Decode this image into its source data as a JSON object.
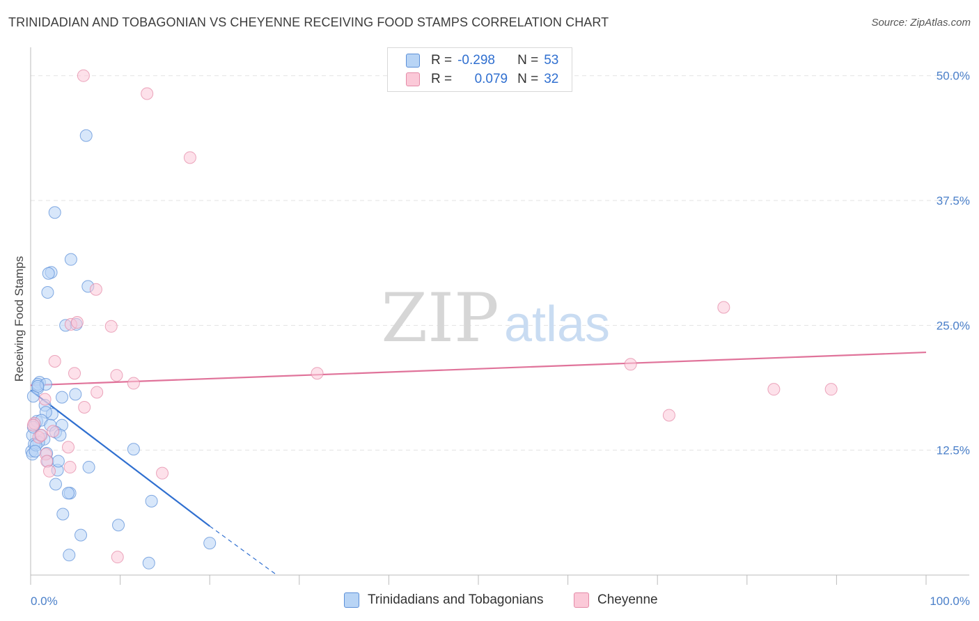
{
  "title": "TRINIDADIAN AND TOBAGONIAN VS CHEYENNE RECEIVING FOOD STAMPS CORRELATION CHART",
  "source": "Source: ZipAtlas.com",
  "watermark": {
    "zip": "ZIP",
    "atlas": "atlas"
  },
  "legend": {
    "r_label": "R =",
    "n_label": "N =",
    "series1": {
      "r": "-0.298",
      "n": "53"
    },
    "series2": {
      "r": "0.079",
      "n": "32"
    }
  },
  "bottom_legend": {
    "series1": "Trinidadians and Tobagonians",
    "series2": "Cheyenne"
  },
  "chart_data": {
    "type": "scatter",
    "title": "TRINIDADIAN AND TOBAGONIAN VS CHEYENNE RECEIVING FOOD STAMPS CORRELATION CHART",
    "xlabel": "",
    "ylabel": "Receiving Food Stamps",
    "xlim": [
      0,
      100
    ],
    "ylim": [
      0,
      52
    ],
    "x_tick_labels": [
      "0.0%",
      "100.0%"
    ],
    "y_ticks": [
      12.5,
      25.0,
      37.5,
      50.0
    ],
    "y_tick_labels": [
      "12.5%",
      "25.0%",
      "37.5%",
      "50.0%"
    ],
    "colors": {
      "series1": "#5b8fd8",
      "series1_fill": "#b8d4f5",
      "series1_line": "#2f6fd0",
      "series2": "#e48aa7",
      "series2_fill": "#fbc9d8",
      "series2_line": "#e0739a",
      "tick_text": "#4a7fc9",
      "grid": "#e3e3e3"
    },
    "series": [
      {
        "name": "Trinidadians and Tobagonians",
        "x": [
          6.2,
          2.7,
          4.5,
          2.3,
          1.9,
          6.4,
          2.0,
          3.9,
          1.0,
          0.8,
          0.3,
          1.6,
          2.4,
          5.0,
          1.7,
          3.5,
          0.5,
          0.7,
          1.2,
          2.2,
          0.2,
          1.5,
          5.1,
          0.1,
          3.5,
          2.8,
          1.8,
          0.9,
          0.4,
          3.3,
          0.2,
          0.6,
          1.9,
          3.0,
          0.5,
          11.5,
          3.1,
          6.5,
          3.6,
          2.8,
          4.4,
          13.5,
          5.6,
          9.8,
          4.2,
          20.0,
          4.3,
          13.2,
          0.8,
          1.7,
          0.3,
          0.8,
          1.1
        ],
        "y": [
          44.0,
          36.3,
          31.6,
          30.3,
          28.3,
          28.9,
          30.2,
          25.0,
          19.3,
          18.7,
          17.9,
          17.0,
          16.1,
          18.1,
          16.3,
          17.8,
          15.1,
          15.4,
          15.5,
          15.0,
          14.0,
          13.6,
          25.1,
          12.4,
          15.0,
          14.3,
          12.2,
          13.3,
          13.1,
          14.0,
          12.1,
          13.0,
          11.4,
          10.5,
          12.4,
          12.6,
          11.4,
          10.8,
          6.1,
          9.1,
          8.2,
          7.4,
          4.0,
          5.0,
          8.2,
          3.2,
          2.0,
          1.2,
          19.1,
          19.1,
          14.8,
          18.9,
          14.0
        ],
        "trend": {
          "x1": 0.0,
          "y1": 18.5,
          "x2": 20.0,
          "y2": 4.9,
          "dash_to_x": 27.5,
          "dash_to_y": 0.0
        }
      },
      {
        "name": "Cheyenne",
        "x": [
          5.9,
          13.0,
          17.8,
          7.3,
          9.0,
          4.5,
          5.2,
          2.7,
          4.9,
          9.6,
          32.0,
          1.6,
          0.4,
          0.9,
          6.0,
          1.2,
          2.5,
          0.3,
          7.4,
          4.2,
          1.7,
          4.4,
          11.5,
          1.8,
          2.1,
          77.4,
          67.0,
          83.0,
          71.3,
          89.4,
          9.7,
          14.7
        ],
        "y": [
          50.0,
          48.2,
          41.8,
          28.6,
          24.9,
          25.1,
          25.3,
          21.4,
          20.2,
          20.0,
          20.2,
          17.6,
          15.2,
          13.8,
          16.8,
          14.0,
          14.4,
          15.0,
          18.3,
          12.8,
          12.1,
          10.8,
          19.2,
          11.4,
          10.4,
          26.8,
          21.1,
          18.6,
          16.0,
          18.6,
          1.8,
          10.2
        ],
        "trend": {
          "x1": 0.0,
          "y1": 19.0,
          "x2": 100.0,
          "y2": 22.3
        }
      }
    ]
  }
}
